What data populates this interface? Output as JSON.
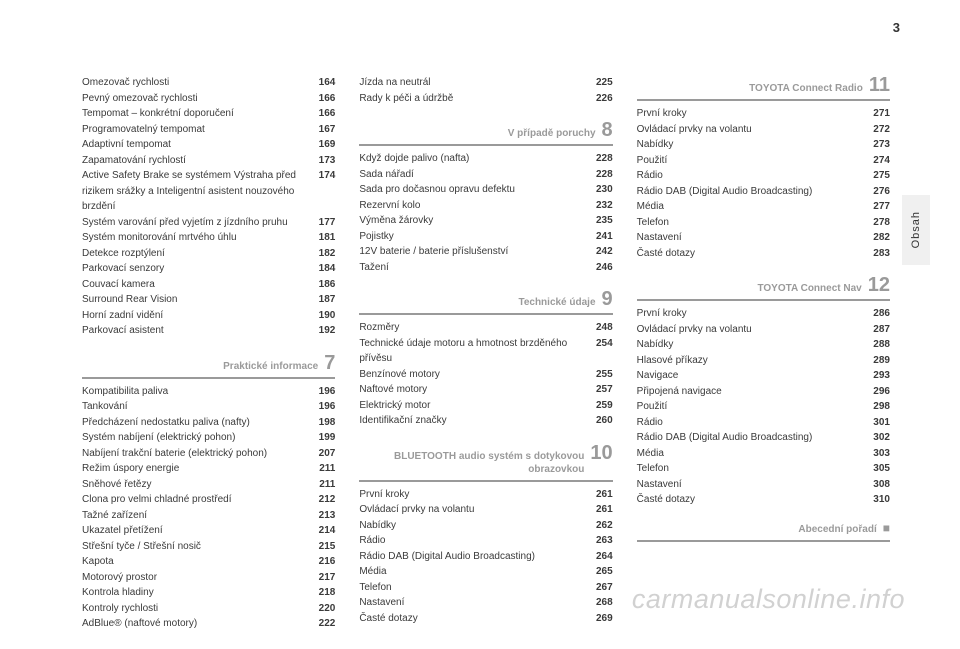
{
  "page_number": "3",
  "vertical_tab_label": "Obsah",
  "watermark": "carmanualsonline.info",
  "columns": [
    {
      "blocks": [
        {
          "type": "entries",
          "items": [
            {
              "label": "Omezovač rychlosti",
              "page": "164"
            },
            {
              "label": "Pevný omezovač rychlosti",
              "page": "166"
            },
            {
              "label": "Tempomat – konkrétní doporučení",
              "page": "166"
            },
            {
              "label": "Programovatelný tempomat",
              "page": "167"
            },
            {
              "label": "Adaptivní tempomat",
              "page": "169"
            },
            {
              "label": "Zapamatování rychlostí",
              "page": "173"
            },
            {
              "label": "Active Safety Brake se systémem Výstraha před rizikem srážky a Inteligentní asistent nouzového brzdění",
              "page": "174"
            },
            {
              "label": "Systém varování před vyjetím z jízdního pruhu",
              "page": "177"
            },
            {
              "label": "Systém monitorování mrtvého úhlu",
              "page": "181"
            },
            {
              "label": "Detekce rozptýlení",
              "page": "182"
            },
            {
              "label": "Parkovací senzory",
              "page": "184"
            },
            {
              "label": "Couvací kamera",
              "page": "186"
            },
            {
              "label": "Surround Rear Vision",
              "page": "187"
            },
            {
              "label": "Horní zadní vidění",
              "page": "190"
            },
            {
              "label": "Parkovací asistent",
              "page": "192"
            }
          ]
        },
        {
          "type": "section",
          "title": "Praktické informace",
          "num": "7"
        },
        {
          "type": "entries",
          "items": [
            {
              "label": "Kompatibilita paliva",
              "page": "196"
            },
            {
              "label": "Tankování",
              "page": "196"
            },
            {
              "label": "Předcházení nedostatku paliva (nafty)",
              "page": "198"
            },
            {
              "label": "Systém nabíjení (elektrický pohon)",
              "page": "199"
            },
            {
              "label": "Nabíjení trakční baterie (elektrický pohon)",
              "page": "207"
            },
            {
              "label": "Režim úspory energie",
              "page": "211"
            },
            {
              "label": "Sněhové řetězy",
              "page": "211"
            },
            {
              "label": "Clona pro velmi chladné prostředí",
              "page": "212"
            },
            {
              "label": "Tažné zařízení",
              "page": "213"
            },
            {
              "label": "Ukazatel přetížení",
              "page": "214"
            },
            {
              "label": "Střešní tyče / Střešní nosič",
              "page": "215"
            },
            {
              "label": "Kapota",
              "page": "216"
            },
            {
              "label": "Motorový prostor",
              "page": "217"
            },
            {
              "label": "Kontrola hladiny",
              "page": "218"
            },
            {
              "label": "Kontroly rychlosti",
              "page": "220"
            },
            {
              "label": "AdBlue® (naftové motory)",
              "page": "222"
            }
          ]
        }
      ]
    },
    {
      "blocks": [
        {
          "type": "entries",
          "items": [
            {
              "label": "Jízda na neutrál",
              "page": "225"
            },
            {
              "label": "Rady k péči a údržbě",
              "page": "226"
            }
          ]
        },
        {
          "type": "section",
          "title": "V případě poruchy",
          "num": "8"
        },
        {
          "type": "entries",
          "items": [
            {
              "label": "Když dojde palivo (nafta)",
              "page": "228"
            },
            {
              "label": "Sada nářadí",
              "page": "228"
            },
            {
              "label": "Sada pro dočasnou opravu defektu",
              "page": "230"
            },
            {
              "label": "Rezervní kolo",
              "page": "232"
            },
            {
              "label": "Výměna žárovky",
              "page": "235"
            },
            {
              "label": "Pojistky",
              "page": "241"
            },
            {
              "label": "12V baterie / baterie příslušenství",
              "page": "242"
            },
            {
              "label": "Tažení",
              "page": "246"
            }
          ]
        },
        {
          "type": "section",
          "title": "Technické údaje",
          "num": "9"
        },
        {
          "type": "entries",
          "items": [
            {
              "label": "Rozměry",
              "page": "248"
            },
            {
              "label": "Technické údaje motoru a hmotnost brzděného přívěsu",
              "page": "254"
            },
            {
              "label": "Benzínové motory",
              "page": "255"
            },
            {
              "label": "Naftové motory",
              "page": "257"
            },
            {
              "label": "Elektrický motor",
              "page": "259"
            },
            {
              "label": "Identifikační značky",
              "page": "260"
            }
          ]
        },
        {
          "type": "section",
          "title": "BLUETOOTH audio systém s dotykovou obrazovkou",
          "num": "10"
        },
        {
          "type": "entries",
          "items": [
            {
              "label": "První kroky",
              "page": "261"
            },
            {
              "label": "Ovládací prvky na volantu",
              "page": "261"
            },
            {
              "label": "Nabídky",
              "page": "262"
            },
            {
              "label": "Rádio",
              "page": "263"
            },
            {
              "label": "Rádio DAB (Digital Audio Broadcasting)",
              "page": "264"
            },
            {
              "label": "Média",
              "page": "265"
            },
            {
              "label": "Telefon",
              "page": "267"
            },
            {
              "label": "Nastavení",
              "page": "268"
            },
            {
              "label": "Časté dotazy",
              "page": "269"
            }
          ]
        }
      ]
    },
    {
      "blocks": [
        {
          "type": "section",
          "title": "TOYOTA Connect Radio",
          "num": "11",
          "no_top_margin": true
        },
        {
          "type": "entries",
          "items": [
            {
              "label": "První kroky",
              "page": "271"
            },
            {
              "label": "Ovládací prvky na volantu",
              "page": "272"
            },
            {
              "label": "Nabídky",
              "page": "273"
            },
            {
              "label": "Použití",
              "page": "274"
            },
            {
              "label": "Rádio",
              "page": "275"
            },
            {
              "label": "Rádio DAB (Digital Audio Broadcasting)",
              "page": "276"
            },
            {
              "label": "Média",
              "page": "277"
            },
            {
              "label": "Telefon",
              "page": "278"
            },
            {
              "label": "Nastavení",
              "page": "282"
            },
            {
              "label": "Časté dotazy",
              "page": "283"
            }
          ]
        },
        {
          "type": "section",
          "title": "TOYOTA Connect Nav",
          "num": "12"
        },
        {
          "type": "entries",
          "items": [
            {
              "label": "První kroky",
              "page": "286"
            },
            {
              "label": "Ovládací prvky na volantu",
              "page": "287"
            },
            {
              "label": "Nabídky",
              "page": "288"
            },
            {
              "label": "Hlasové příkazy",
              "page": "289"
            },
            {
              "label": "Navigace",
              "page": "293"
            },
            {
              "label": "Připojená navigace",
              "page": "296"
            },
            {
              "label": "Použití",
              "page": "298"
            },
            {
              "label": "Rádio",
              "page": "301"
            },
            {
              "label": "Rádio DAB (Digital Audio Broadcasting)",
              "page": "302"
            },
            {
              "label": "Média",
              "page": "303"
            },
            {
              "label": "Telefon",
              "page": "305"
            },
            {
              "label": "Nastavení",
              "page": "308"
            },
            {
              "label": "Časté dotazy",
              "page": "310"
            }
          ]
        },
        {
          "type": "section",
          "title": "Abecední pořadí",
          "num": "■",
          "alpha": true
        }
      ]
    }
  ]
}
